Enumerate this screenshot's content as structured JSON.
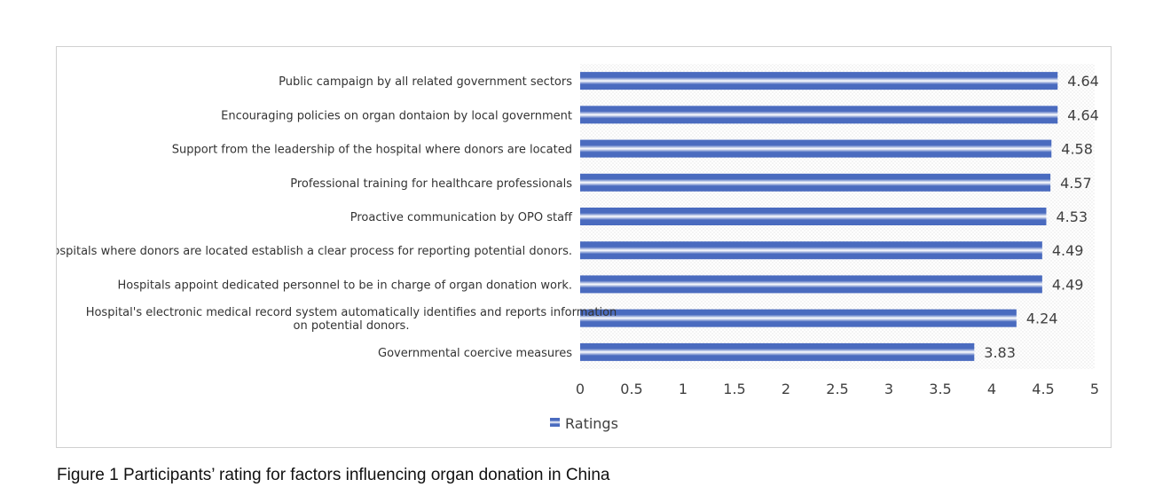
{
  "caption": "Figure 1 Participants’ rating for factors influencing organ donation in China",
  "chart_data": {
    "type": "bar",
    "orientation": "horizontal",
    "categories": [
      [
        "Public campaign by all related government sectors"
      ],
      [
        "Encouraging policies on organ dontaion by local government"
      ],
      [
        "Support from the leadership of the hospital where donors are located"
      ],
      [
        "Professional training for healthcare professionals"
      ],
      [
        "Proactive communication by OPO staff"
      ],
      [
        "Hospitals where donors are located establish a clear process for reporting potential donors."
      ],
      [
        "Hospitals appoint dedicated personnel to be in charge of organ donation work."
      ],
      [
        "Hospital's electronic medical record system automatically identifies and reports information",
        "on potential donors."
      ],
      [
        "Governmental coercive measures"
      ]
    ],
    "series": [
      {
        "name": "Ratings",
        "values": [
          4.64,
          4.64,
          4.58,
          4.57,
          4.53,
          4.49,
          4.49,
          4.24,
          3.83
        ]
      }
    ],
    "data_labels": [
      "4.64",
      "4.64",
      "4.58",
      "4.57",
      "4.53",
      "4.49",
      "4.49",
      "4.24",
      "3.83"
    ],
    "xlim": [
      0,
      5
    ],
    "x_ticks": [
      "0",
      "0.5",
      "1",
      "1.5",
      "2",
      "2.5",
      "3",
      "3.5",
      "4",
      "4.5",
      "5"
    ],
    "legend_position": "bottom",
    "bar_color": "#4a6bbf",
    "bar_highlight": "#ffffff",
    "grid": false
  }
}
